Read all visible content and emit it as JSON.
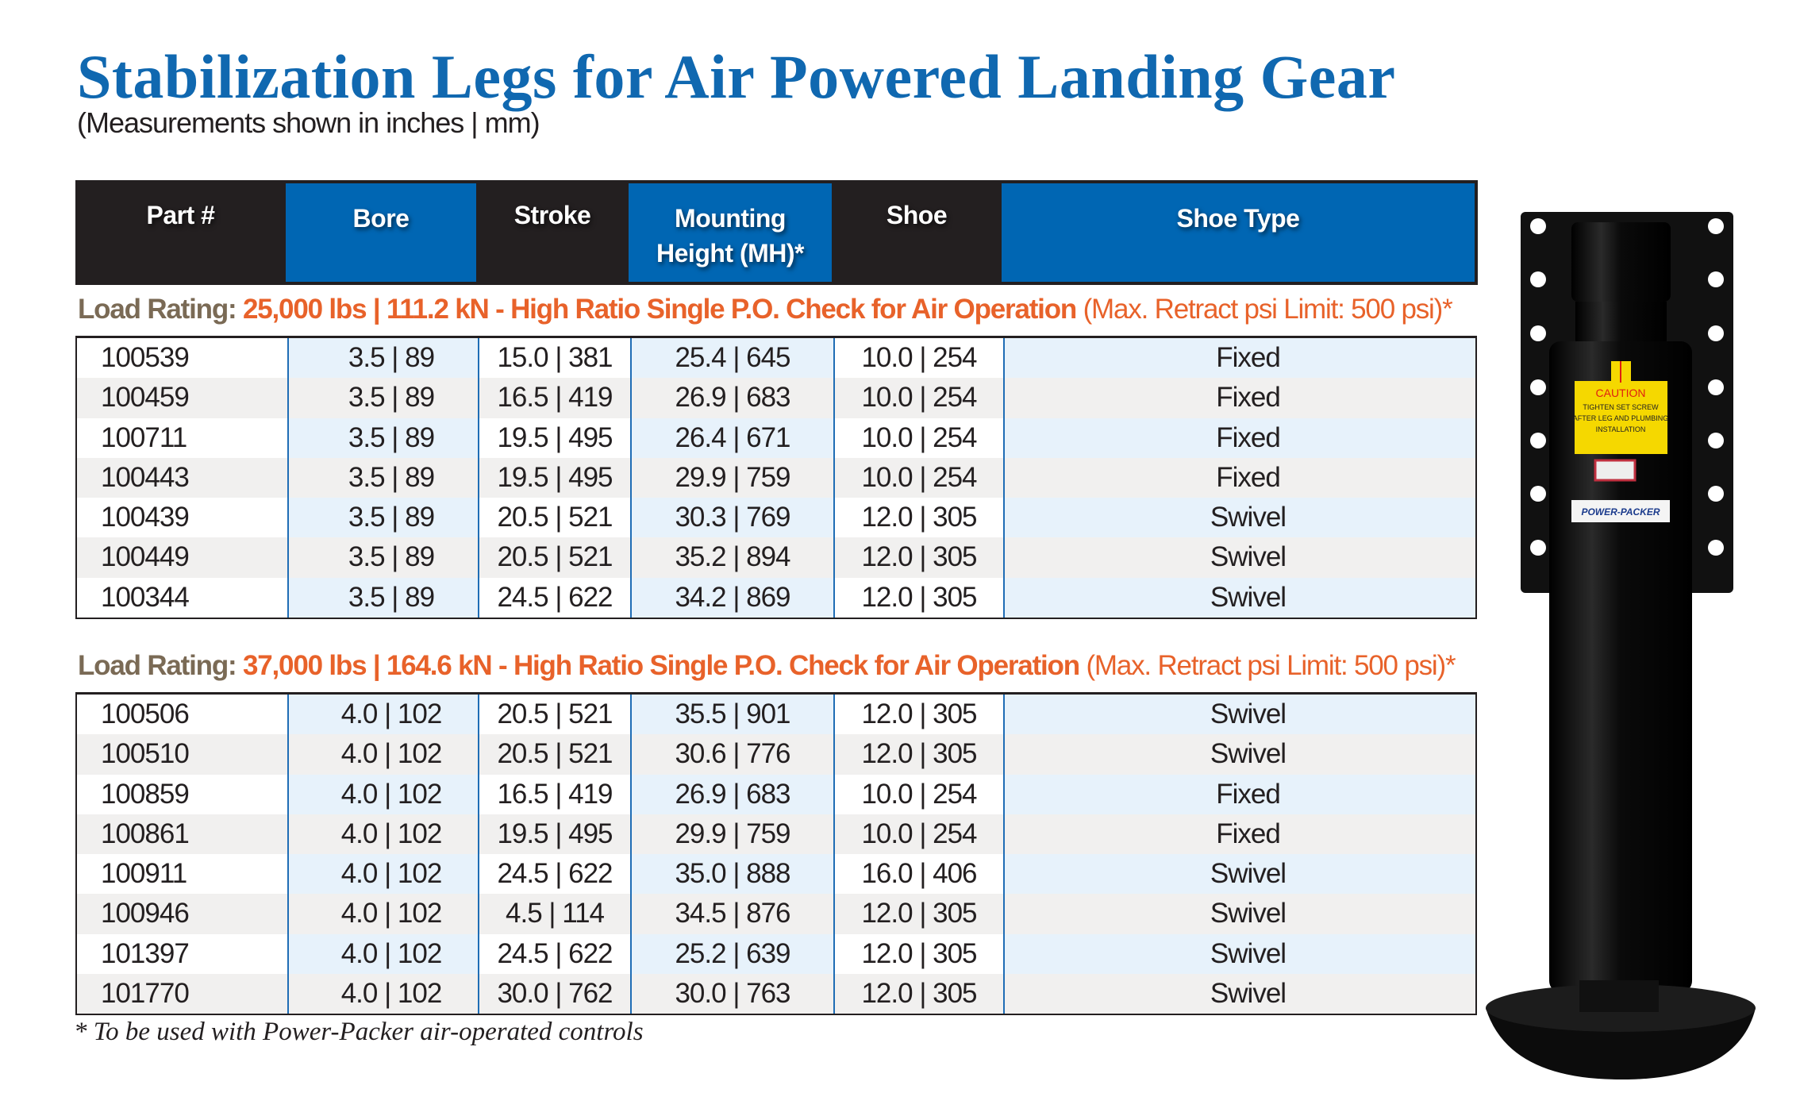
{
  "title": "Stabilization Legs for Air Powered Landing Gear",
  "subtitle": "(Measurements shown in inches | mm)",
  "columns": [
    "Part #",
    "Bore",
    "Stroke",
    "Mounting Height (MH)*",
    "Shoe",
    "Shoe Type"
  ],
  "sections": [
    {
      "load_label": "Load Rating:",
      "load_value": "25,000 lbs | 111.2 kN - High Ratio Single P.O. Check for Air Operation",
      "load_note": "(Max. Retract psi Limit: 500 psi)*",
      "rows": [
        [
          "100539",
          "3.5 | 89",
          "15.0 | 381",
          "25.4 | 645",
          "10.0 | 254",
          "Fixed"
        ],
        [
          "100459",
          "3.5 | 89",
          "16.5 | 419",
          "26.9 | 683",
          "10.0 | 254",
          "Fixed"
        ],
        [
          "100711",
          "3.5 | 89",
          "19.5 | 495",
          "26.4 | 671",
          "10.0 | 254",
          "Fixed"
        ],
        [
          "100443",
          "3.5 | 89",
          "19.5 | 495",
          "29.9 | 759",
          "10.0 | 254",
          "Fixed"
        ],
        [
          "100439",
          "3.5 | 89",
          "20.5 | 521",
          "30.3 | 769",
          "12.0 | 305",
          "Swivel"
        ],
        [
          "100449",
          "3.5 | 89",
          "20.5 | 521",
          "35.2 | 894",
          "12.0 | 305",
          "Swivel"
        ],
        [
          "100344",
          "3.5 | 89",
          "24.5 | 622",
          "34.2 | 869",
          "12.0 | 305",
          "Swivel"
        ]
      ]
    },
    {
      "load_label": "Load Rating:",
      "load_value": "37,000 lbs | 164.6 kN - High Ratio Single P.O. Check for Air Operation",
      "load_note": "(Max. Retract psi Limit: 500 psi)*",
      "rows": [
        [
          "100506",
          "4.0 | 102",
          "20.5 | 521",
          "35.5 | 901",
          "12.0 | 305",
          "Swivel"
        ],
        [
          "100510",
          "4.0 | 102",
          "20.5 | 521",
          "30.6 | 776",
          "12.0 | 305",
          "Swivel"
        ],
        [
          "100859",
          "4.0 | 102",
          "16.5 | 419",
          "26.9 | 683",
          "10.0 | 254",
          "Fixed"
        ],
        [
          "100861",
          "4.0 | 102",
          "19.5 | 495",
          "29.9 | 759",
          "10.0 | 254",
          "Fixed"
        ],
        [
          "100911",
          "4.0 | 102",
          "24.5 | 622",
          "35.0 | 888",
          "16.0 | 406",
          "Swivel"
        ],
        [
          "100946",
          "4.0 | 102",
          "4.5 | 114",
          "34.5 | 876",
          "12.0 | 305",
          "Swivel"
        ],
        [
          "101397",
          "4.0 | 102",
          "24.5 | 622",
          "25.2 | 639",
          "12.0 | 305",
          "Swivel"
        ],
        [
          "101770",
          "4.0 | 102",
          "30.0 | 762",
          "30.0 | 763",
          "12.0 | 305",
          "Swivel"
        ]
      ]
    }
  ],
  "footnote": "* To be used with Power-Packer air-operated controls",
  "product_image": {
    "caution_title": "CAUTION",
    "caution_text": [
      "TIGHTEN SET SCREW",
      "AFTER LEG AND PLUMBING",
      "INSTALLATION"
    ],
    "brand": "POWER-PACKER"
  }
}
